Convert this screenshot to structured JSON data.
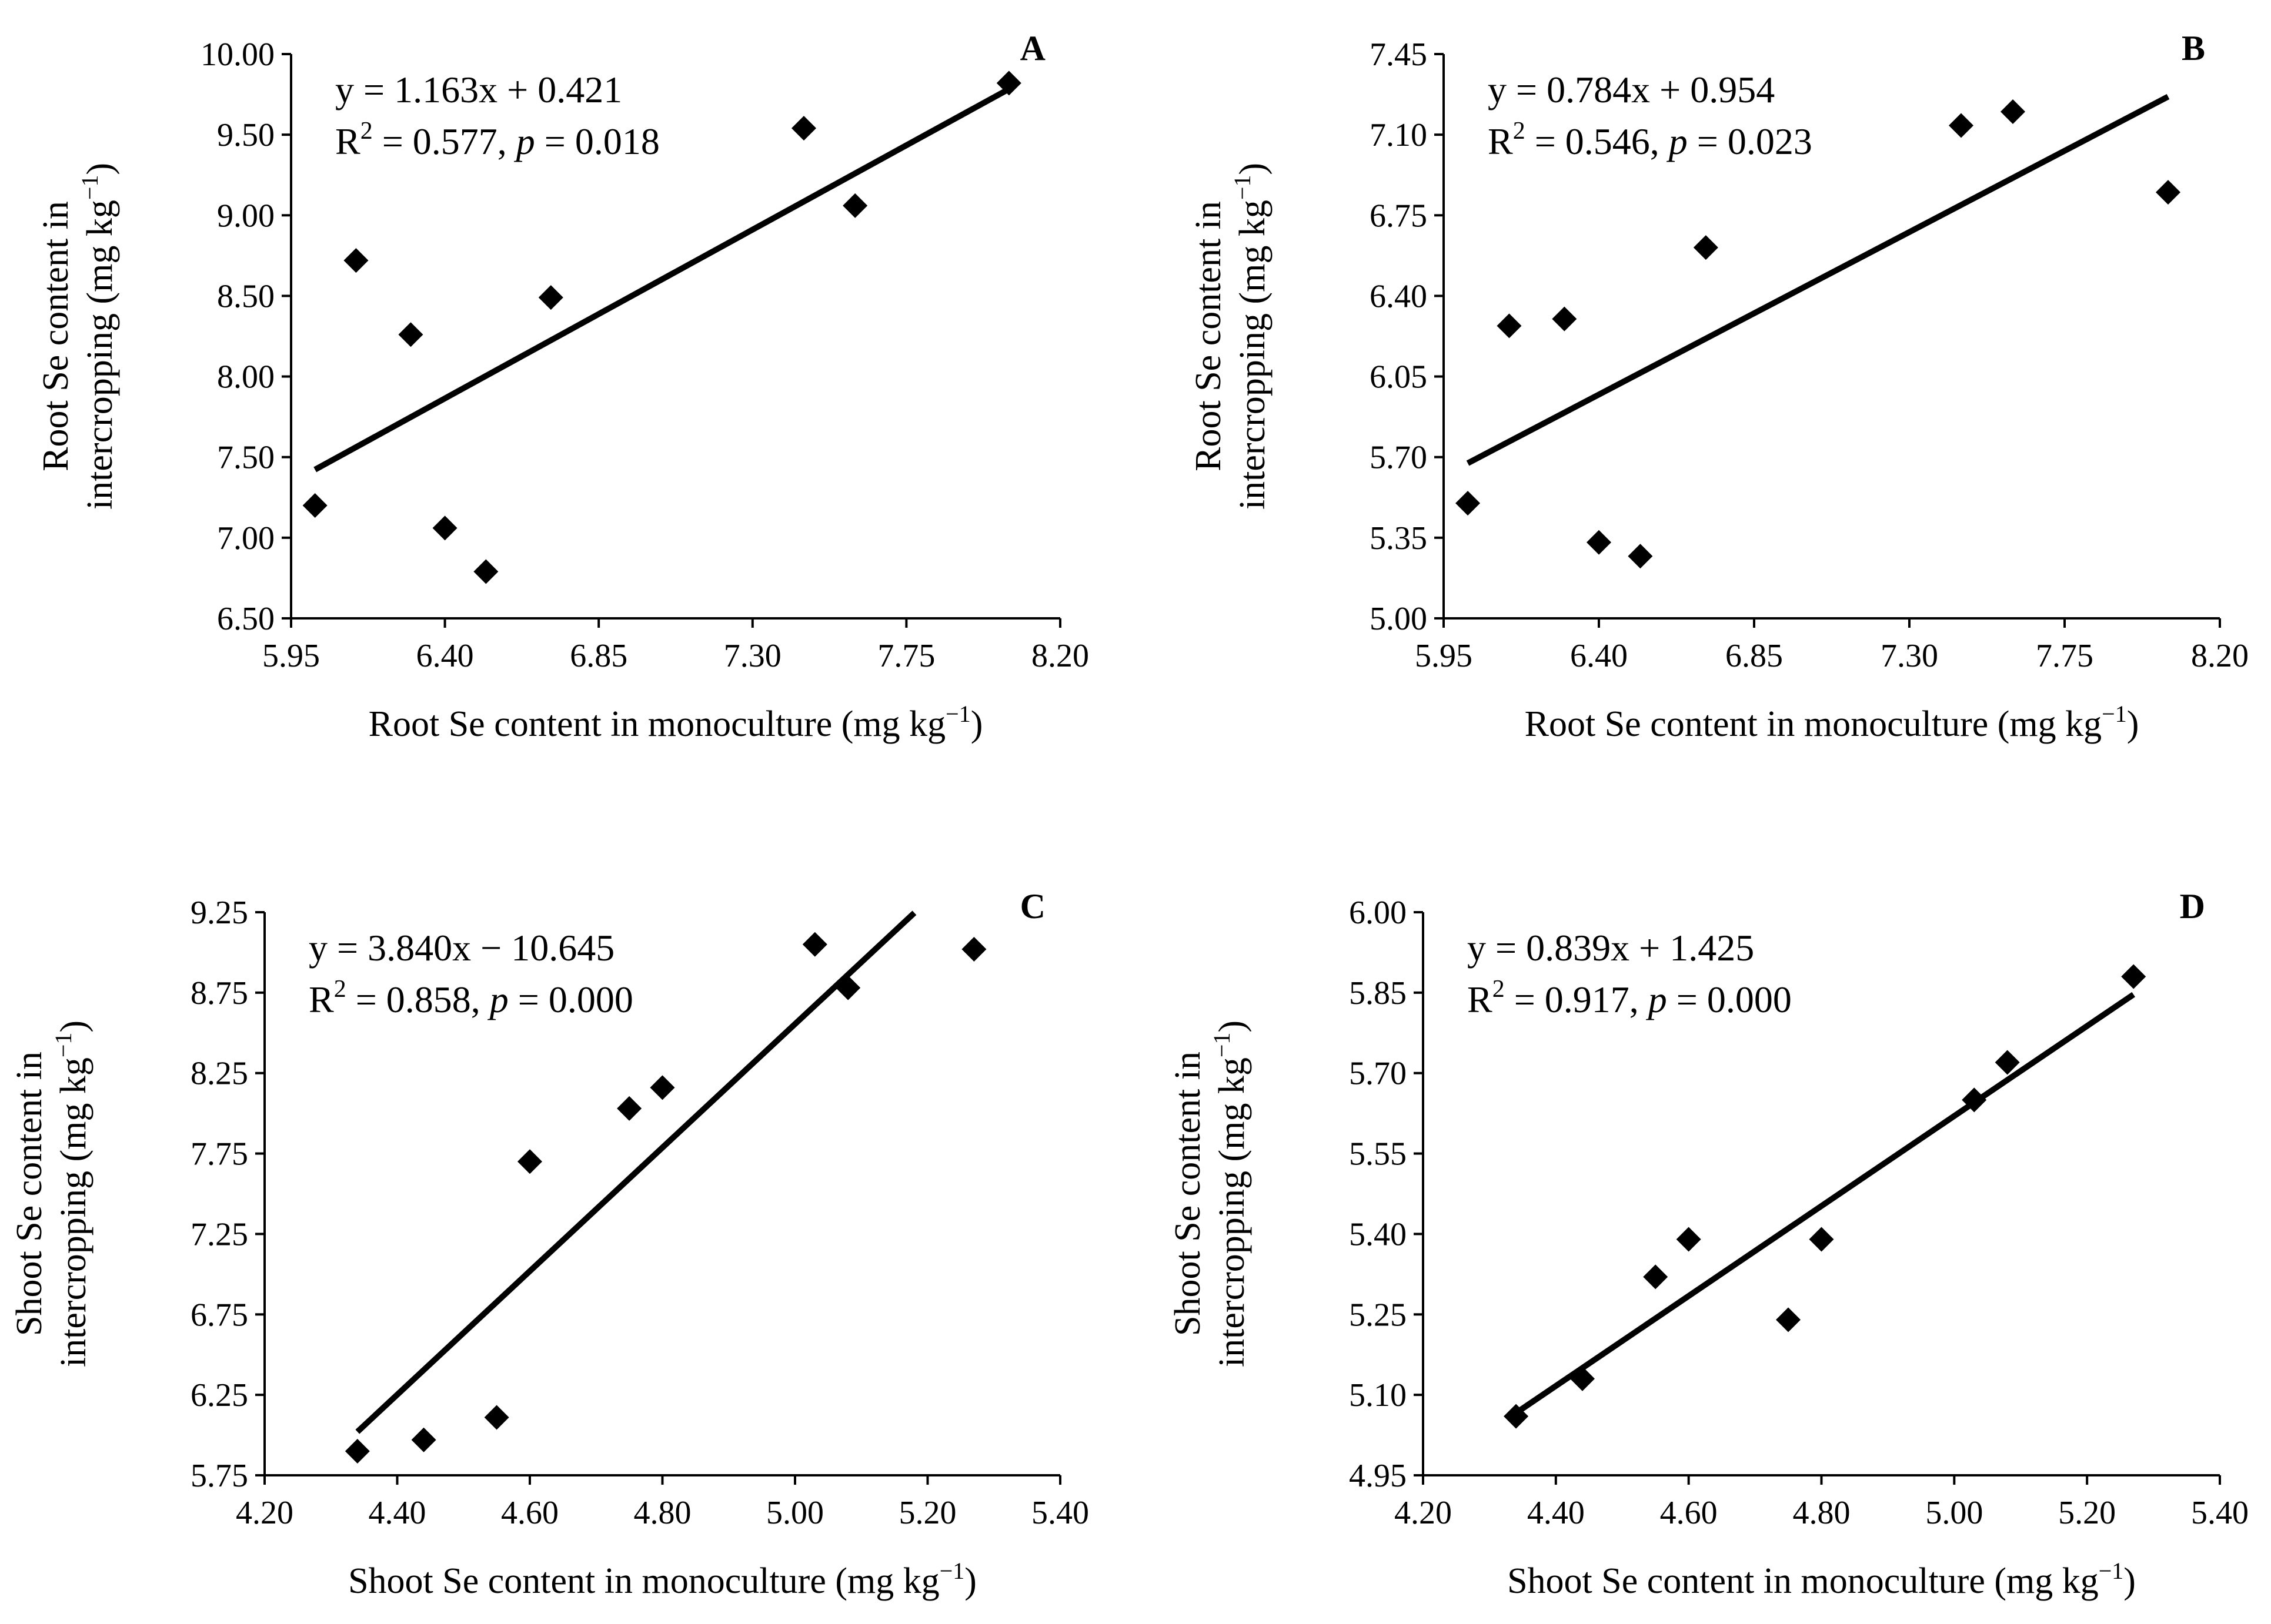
{
  "chart_data": [
    {
      "type": "scatter",
      "panel": "A",
      "xlabel": "Root Se content in monoculture (mg kg",
      "ylabel_line1": "Root Se content in",
      "ylabel_line2": "intercropping (mg kg",
      "unit_exponent": "−1",
      "unit_close": ")",
      "xlim": [
        5.95,
        8.2
      ],
      "ylim": [
        6.5,
        10.0
      ],
      "xticks": [
        "5.95",
        "6.40",
        "6.85",
        "7.30",
        "7.75",
        "8.20"
      ],
      "yticks": [
        "6.50",
        "7.00",
        "7.50",
        "8.00",
        "8.50",
        "9.00",
        "9.50",
        "10.00"
      ],
      "points": [
        {
          "x": 6.02,
          "y": 7.2
        },
        {
          "x": 6.14,
          "y": 8.72
        },
        {
          "x": 6.3,
          "y": 8.26
        },
        {
          "x": 6.4,
          "y": 7.06
        },
        {
          "x": 6.52,
          "y": 6.79
        },
        {
          "x": 6.71,
          "y": 8.49
        },
        {
          "x": 7.45,
          "y": 9.54
        },
        {
          "x": 7.6,
          "y": 9.06
        },
        {
          "x": 8.05,
          "y": 9.82
        }
      ],
      "fit": {
        "slope": 1.163,
        "intercept": 0.421,
        "x_range": [
          6.02,
          8.05
        ]
      },
      "equation": "y = 1.163x + 0.421",
      "r2_prefix": "R",
      "r2_exp": "2",
      "r2_value": " = 0.577, ",
      "p_symbol": "p",
      "p_value": " = 0.018"
    },
    {
      "type": "scatter",
      "panel": "B",
      "xlabel": "Root Se content in monoculture (mg kg",
      "ylabel_line1": "Root Se content in",
      "ylabel_line2": "intercropping (mg kg",
      "unit_exponent": "−1",
      "unit_close": ")",
      "xlim": [
        5.95,
        8.2
      ],
      "ylim": [
        5.0,
        7.45
      ],
      "xticks": [
        "5.95",
        "6.40",
        "6.85",
        "7.30",
        "7.75",
        "8.20"
      ],
      "yticks": [
        "5.00",
        "5.35",
        "5.70",
        "6.05",
        "6.40",
        "6.75",
        "7.10",
        "7.45"
      ],
      "points": [
        {
          "x": 6.02,
          "y": 5.5
        },
        {
          "x": 6.14,
          "y": 6.27
        },
        {
          "x": 6.3,
          "y": 6.3
        },
        {
          "x": 6.4,
          "y": 5.33
        },
        {
          "x": 6.52,
          "y": 5.27
        },
        {
          "x": 6.71,
          "y": 6.61
        },
        {
          "x": 7.45,
          "y": 7.14
        },
        {
          "x": 7.6,
          "y": 7.2
        },
        {
          "x": 8.05,
          "y": 6.85
        }
      ],
      "fit": {
        "slope": 0.784,
        "intercept": 0.954,
        "x_range": [
          6.02,
          8.05
        ]
      },
      "equation": "y = 0.784x + 0.954",
      "r2_prefix": "R",
      "r2_exp": "2",
      "r2_value": " = 0.546, ",
      "p_symbol": "p",
      "p_value": " = 0.023"
    },
    {
      "type": "scatter",
      "panel": "C",
      "xlabel": "Shoot Se content in monoculture (mg kg",
      "ylabel_line1": "Shoot Se content in",
      "ylabel_line2": "intercropping (mg kg",
      "unit_exponent": "−1",
      "unit_close": ")",
      "xlim": [
        4.2,
        5.4
      ],
      "ylim": [
        5.75,
        9.25
      ],
      "xticks": [
        "4.20",
        "4.40",
        "4.60",
        "4.80",
        "5.00",
        "5.20",
        "5.40"
      ],
      "yticks": [
        "5.75",
        "6.25",
        "6.75",
        "7.25",
        "7.75",
        "8.25",
        "8.75",
        "9.25"
      ],
      "points": [
        {
          "x": 4.34,
          "y": 5.9
        },
        {
          "x": 4.44,
          "y": 5.97
        },
        {
          "x": 4.55,
          "y": 6.11
        },
        {
          "x": 4.6,
          "y": 7.7
        },
        {
          "x": 4.75,
          "y": 8.03
        },
        {
          "x": 4.8,
          "y": 8.16
        },
        {
          "x": 5.03,
          "y": 9.05
        },
        {
          "x": 5.08,
          "y": 8.78
        },
        {
          "x": 5.27,
          "y": 9.02
        }
      ],
      "fit": {
        "slope": 3.84,
        "intercept": -10.645,
        "x_range": [
          4.34,
          5.18
        ]
      },
      "equation": "y = 3.840x − 10.645",
      "r2_prefix": "R",
      "r2_exp": "2",
      "r2_value": " = 0.858, ",
      "p_symbol": "p",
      "p_value": " = 0.000"
    },
    {
      "type": "scatter",
      "panel": "D",
      "xlabel": "Shoot Se content in monoculture (mg kg",
      "ylabel_line1": "Shoot Se content in",
      "ylabel_line2": "intercropping (mg kg",
      "unit_exponent": "−1",
      "unit_close": ")",
      "xlim": [
        4.2,
        5.4
      ],
      "ylim": [
        4.95,
        6.0
      ],
      "xticks": [
        "4.20",
        "4.40",
        "4.60",
        "4.80",
        "5.00",
        "5.20",
        "5.40"
      ],
      "yticks": [
        "4.95",
        "5.10",
        "5.25",
        "5.40",
        "5.55",
        "5.70",
        "5.85",
        "6.00"
      ],
      "points": [
        {
          "x": 4.34,
          "y": 5.06
        },
        {
          "x": 4.44,
          "y": 5.13
        },
        {
          "x": 4.55,
          "y": 5.32
        },
        {
          "x": 4.6,
          "y": 5.39
        },
        {
          "x": 4.75,
          "y": 5.24
        },
        {
          "x": 4.8,
          "y": 5.39
        },
        {
          "x": 5.03,
          "y": 5.65
        },
        {
          "x": 5.08,
          "y": 5.72
        },
        {
          "x": 5.27,
          "y": 5.88
        }
      ],
      "fit": {
        "slope": 0.839,
        "intercept": 1.425,
        "x_range": [
          4.34,
          5.27
        ]
      },
      "equation": "y = 0.839x + 1.425",
      "r2_prefix": "R",
      "r2_exp": "2",
      "r2_value": " = 0.917, ",
      "p_symbol": "p",
      "p_value": " = 0.000"
    }
  ]
}
